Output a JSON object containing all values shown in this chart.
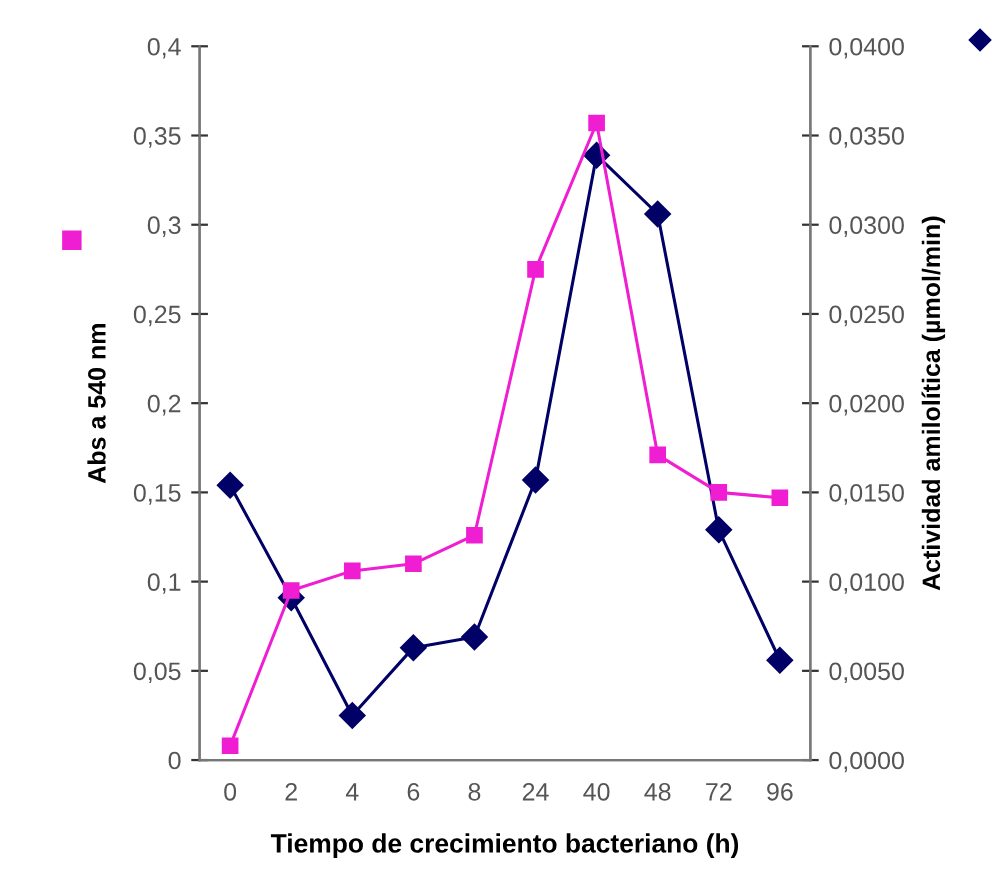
{
  "chart_data": {
    "type": "line",
    "xlabel": "Tiempo de crecimiento bacteriano (h)",
    "ylabel": "Abs a 540 nm",
    "y2label": "Actividad amilolítica (µmol/min)",
    "categories": [
      "0",
      "2",
      "4",
      "6",
      "8",
      "24",
      "40",
      "48",
      "72",
      "96"
    ],
    "series": [
      {
        "color": "#f01ed2",
        "marker": "square",
        "values": [
          0.008,
          0.095,
          0.106,
          0.11,
          0.126,
          0.275,
          0.357,
          0.171,
          0.15,
          0.147
        ]
      },
      {
        "color": "#000066",
        "marker": "diamond",
        "axis": "y2",
        "values": [
          0.0154,
          0.0091,
          0.0025,
          0.0063,
          0.0069,
          0.0157,
          0.0339,
          0.0306,
          0.0129,
          0.0056
        ]
      }
    ],
    "ylim": [
      0,
      0.4
    ],
    "yticks": [
      0,
      {
        "value": 0.05,
        "label": "0,05"
      },
      {
        "value": 0.1,
        "label": "0,1"
      },
      {
        "value": 0.15,
        "label": "0,15"
      },
      {
        "value": 0.2,
        "label": "0,2"
      },
      {
        "value": 0.25,
        "label": "0,25"
      },
      {
        "value": 0.3,
        "label": "0,3"
      },
      {
        "value": 0.35,
        "label": "0,35"
      },
      {
        "value": 0.4,
        "label": "0,4"
      }
    ],
    "y2lim": [
      0,
      0.04
    ],
    "y2ticks": [
      {
        "value": 0,
        "label": "0,0000"
      },
      {
        "value": 0.005,
        "label": "0,0050"
      },
      {
        "value": 0.01,
        "label": "0,0100"
      },
      {
        "value": 0.015,
        "label": "0,0150"
      },
      {
        "value": 0.02,
        "label": "0,0200"
      },
      {
        "value": 0.025,
        "label": "0,0250"
      },
      {
        "value": 0.03,
        "label": "0,0300"
      },
      {
        "value": 0.035,
        "label": "0,0350"
      },
      {
        "value": 0.04,
        "label": "0,0400"
      }
    ],
    "grid": false,
    "legend": false,
    "line_style": "solid"
  }
}
